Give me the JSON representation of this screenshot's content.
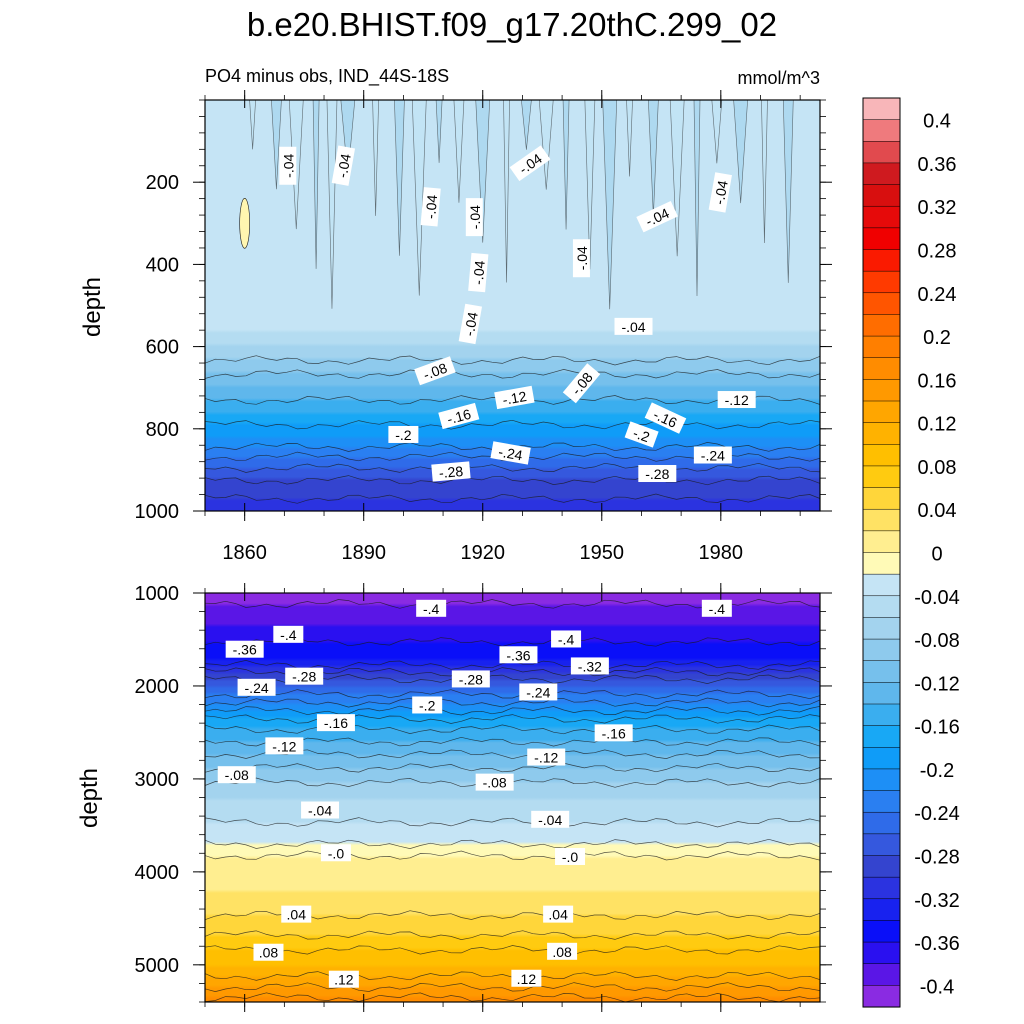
{
  "title": "b.e20.BHIST.f09_g17.20thC.299_02",
  "subtitle_left": "PO4 minus obs, IND_44S-18S",
  "subtitle_right": "mmol/m^3",
  "chart_data": [
    {
      "type": "heatmap",
      "name": "upper panel",
      "ylabel": "depth",
      "xlim": [
        1850,
        2005
      ],
      "ylim": [
        0,
        1000
      ],
      "y_inverted": true,
      "x_ticks": [
        "1860",
        "1890",
        "1920",
        "1950",
        "1980"
      ],
      "x_tick_values": [
        1860,
        1890,
        1920,
        1950,
        1980
      ],
      "y_ticks": [
        "200",
        "400",
        "600",
        "800",
        "1000"
      ],
      "y_tick_values": [
        200,
        400,
        600,
        800,
        1000
      ],
      "band_levels": [
        {
          "depth": 0,
          "value": -0.04
        },
        {
          "depth": 560,
          "value": -0.04
        },
        {
          "depth": 600,
          "value": -0.06
        },
        {
          "depth": 650,
          "value": -0.09
        },
        {
          "depth": 700,
          "value": -0.12
        },
        {
          "depth": 760,
          "value": -0.16
        },
        {
          "depth": 820,
          "value": -0.2
        },
        {
          "depth": 880,
          "value": -0.25
        },
        {
          "depth": 940,
          "value": -0.29
        },
        {
          "depth": 1000,
          "value": -0.31
        }
      ],
      "contour_labels": [
        {
          "text": "-.04",
          "x": 1871,
          "y": 160,
          "angle": -90
        },
        {
          "text": "-.04",
          "x": 1885,
          "y": 160,
          "angle": -80
        },
        {
          "text": "-.04",
          "x": 1907,
          "y": 260,
          "angle": -85
        },
        {
          "text": "-.04",
          "x": 1932,
          "y": 155,
          "angle": -35
        },
        {
          "text": "-.04",
          "x": 1918,
          "y": 285,
          "angle": -90
        },
        {
          "text": "-.04",
          "x": 1919,
          "y": 420,
          "angle": -85
        },
        {
          "text": "-.04",
          "x": 1945,
          "y": 385,
          "angle": -90
        },
        {
          "text": "-.04",
          "x": 1964,
          "y": 285,
          "angle": -25
        },
        {
          "text": "-.04",
          "x": 1980,
          "y": 225,
          "angle": -80
        },
        {
          "text": "-.04",
          "x": 1958,
          "y": 552,
          "angle": 0
        },
        {
          "text": "-.04",
          "x": 1917,
          "y": 545,
          "angle": -80
        },
        {
          "text": "-.08",
          "x": 1908,
          "y": 660,
          "angle": -20
        },
        {
          "text": "-.08",
          "x": 1945,
          "y": 690,
          "angle": -50
        },
        {
          "text": "-.12",
          "x": 1928,
          "y": 725,
          "angle": -10
        },
        {
          "text": "-.12",
          "x": 1984,
          "y": 730,
          "angle": 0
        },
        {
          "text": "-.16",
          "x": 1914,
          "y": 770,
          "angle": -15
        },
        {
          "text": "-.16",
          "x": 1966,
          "y": 775,
          "angle": 25
        },
        {
          "text": "-.2",
          "x": 1900,
          "y": 815,
          "angle": 0
        },
        {
          "text": "-.2",
          "x": 1960,
          "y": 815,
          "angle": 20
        },
        {
          "text": "-.24",
          "x": 1927,
          "y": 860,
          "angle": 10
        },
        {
          "text": "-.24",
          "x": 1978,
          "y": 865,
          "angle": 0
        },
        {
          "text": "-.28",
          "x": 1912,
          "y": 905,
          "angle": -5
        },
        {
          "text": "-.28",
          "x": 1964,
          "y": 910,
          "angle": 0
        }
      ]
    },
    {
      "type": "heatmap",
      "name": "lower panel",
      "ylabel": "depth",
      "xlim": [
        1850,
        2005
      ],
      "ylim": [
        1000,
        5400
      ],
      "y_inverted": true,
      "x_tick_values": [
        1860,
        1890,
        1920,
        1950,
        1980
      ],
      "y_ticks": [
        "1000",
        "2000",
        "3000",
        "4000",
        "5000"
      ],
      "y_tick_values": [
        1000,
        2000,
        3000,
        4000,
        5000
      ],
      "band_levels": [
        {
          "depth": 1000,
          "value": -0.41
        },
        {
          "depth": 1350,
          "value": -0.38
        },
        {
          "depth": 1700,
          "value": -0.34
        },
        {
          "depth": 2000,
          "value": -0.26
        },
        {
          "depth": 2400,
          "value": -0.17
        },
        {
          "depth": 2800,
          "value": -0.11
        },
        {
          "depth": 3200,
          "value": -0.06
        },
        {
          "depth": 3600,
          "value": -0.03
        },
        {
          "depth": 3800,
          "value": -0.01
        },
        {
          "depth": 3850,
          "value": 0.01
        },
        {
          "depth": 4200,
          "value": 0.02
        },
        {
          "depth": 4600,
          "value": 0.05
        },
        {
          "depth": 5000,
          "value": 0.1
        },
        {
          "depth": 5300,
          "value": 0.15
        },
        {
          "depth": 5400,
          "value": 0.17
        }
      ],
      "contour_labels": [
        {
          "text": "-.4",
          "x": 1907,
          "y": 1170,
          "angle": 0
        },
        {
          "text": "-.4",
          "x": 1979,
          "y": 1170,
          "angle": 0
        },
        {
          "text": "-.4",
          "x": 1871,
          "y": 1450,
          "angle": 0
        },
        {
          "text": "-.4",
          "x": 1941,
          "y": 1500,
          "angle": 0
        },
        {
          "text": "-.36",
          "x": 1860,
          "y": 1610,
          "angle": 0
        },
        {
          "text": "-.36",
          "x": 1929,
          "y": 1670,
          "angle": 0
        },
        {
          "text": "-.32",
          "x": 1947,
          "y": 1790,
          "angle": 0
        },
        {
          "text": "-.28",
          "x": 1875,
          "y": 1900,
          "angle": 0
        },
        {
          "text": "-.28",
          "x": 1917,
          "y": 1930,
          "angle": 0
        },
        {
          "text": "-.24",
          "x": 1863,
          "y": 2020,
          "angle": 0
        },
        {
          "text": "-.24",
          "x": 1934,
          "y": 2070,
          "angle": 0
        },
        {
          "text": "-.2",
          "x": 1906,
          "y": 2210,
          "angle": 0
        },
        {
          "text": "-.16",
          "x": 1883,
          "y": 2400,
          "angle": 0
        },
        {
          "text": "-.16",
          "x": 1953,
          "y": 2510,
          "angle": 0
        },
        {
          "text": "-.12",
          "x": 1870,
          "y": 2650,
          "angle": 0
        },
        {
          "text": "-.12",
          "x": 1936,
          "y": 2770,
          "angle": 0
        },
        {
          "text": "-.08",
          "x": 1858,
          "y": 2960,
          "angle": 0
        },
        {
          "text": "-.08",
          "x": 1923,
          "y": 3040,
          "angle": 0
        },
        {
          "text": "-.04",
          "x": 1879,
          "y": 3340,
          "angle": 0
        },
        {
          "text": "-.04",
          "x": 1937,
          "y": 3440,
          "angle": 0
        },
        {
          "text": "-.0",
          "x": 1883,
          "y": 3800,
          "angle": 0
        },
        {
          "text": "-.0",
          "x": 1942,
          "y": 3840,
          "angle": 0
        },
        {
          "text": ".04",
          "x": 1873,
          "y": 4460,
          "angle": 0
        },
        {
          "text": ".04",
          "x": 1939,
          "y": 4460,
          "angle": 0
        },
        {
          "text": ".08",
          "x": 1866,
          "y": 4870,
          "angle": 0
        },
        {
          "text": ".08",
          "x": 1940,
          "y": 4860,
          "angle": 0
        },
        {
          "text": ".12",
          "x": 1885,
          "y": 5160,
          "angle": 0
        },
        {
          "text": ".12",
          "x": 1931,
          "y": 5150,
          "angle": 0
        }
      ]
    }
  ],
  "colorbar": {
    "labels": [
      "0.4",
      "0.36",
      "0.32",
      "0.28",
      "0.24",
      "0.2",
      "0.16",
      "0.12",
      "0.08",
      "0.04",
      "0",
      "-0.04",
      "-0.08",
      "-0.12",
      "-0.16",
      "-0.2",
      "-0.24",
      "-0.28",
      "-0.32",
      "-0.36",
      "-0.4"
    ],
    "label_values": [
      0.4,
      0.36,
      0.32,
      0.28,
      0.24,
      0.2,
      0.16,
      0.12,
      0.08,
      0.04,
      0,
      -0.04,
      -0.08,
      -0.12,
      -0.16,
      -0.2,
      -0.24,
      -0.28,
      -0.32,
      -0.36,
      -0.4
    ],
    "colors_top_to_bottom": [
      "#f8b6b9",
      "#ef7a7d",
      "#e14a4e",
      "#cf1a1f",
      "#d80f0f",
      "#e60a0a",
      "#f00000",
      "#fa1a00",
      "#ff3a00",
      "#ff5500",
      "#ff6d00",
      "#ff7f00",
      "#ff8c00",
      "#ff9900",
      "#ffa600",
      "#ffb200",
      "#ffbf00",
      "#ffcb10",
      "#ffd63a",
      "#ffe264",
      "#ffee90",
      "#fffab7",
      "#c5e4f5",
      "#b4dcf1",
      "#a3d3ee",
      "#8ecaed",
      "#76c0ec",
      "#5fb7ec",
      "#3aaeef",
      "#18a8f5",
      "#0f9cf8",
      "#1d8ff6",
      "#2a7ff1",
      "#2f6be9",
      "#3558de",
      "#3444cf",
      "#2b33e0",
      "#1822ef",
      "#0a0ff8",
      "#2a10f0",
      "#5a16e6",
      "#8a2be2"
    ]
  }
}
